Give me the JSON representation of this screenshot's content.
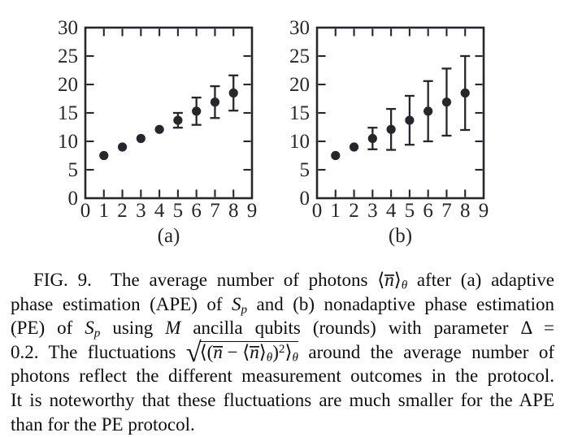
{
  "chart_data": [
    {
      "type": "scatter",
      "panel_label": "(a)",
      "x": [
        1,
        2,
        3,
        4,
        5,
        6,
        7,
        8
      ],
      "y": [
        7.5,
        9.0,
        10.5,
        12.1,
        13.7,
        15.3,
        16.9,
        18.5
      ],
      "yerr": [
        0,
        0,
        0,
        0,
        1.3,
        2.4,
        2.8,
        3.1
      ],
      "xlim": [
        0,
        9
      ],
      "ylim": [
        0,
        30
      ],
      "x_ticks": [
        0,
        1,
        2,
        3,
        4,
        5,
        6,
        7,
        8,
        9
      ],
      "y_ticks": [
        0,
        5,
        10,
        15,
        20,
        25,
        30
      ]
    },
    {
      "type": "scatter",
      "panel_label": "(b)",
      "x": [
        1,
        2,
        3,
        4,
        5,
        6,
        7,
        8
      ],
      "y": [
        7.5,
        9.0,
        10.5,
        12.1,
        13.7,
        15.3,
        16.9,
        18.5
      ],
      "yerr": [
        0,
        0,
        1.9,
        3.6,
        4.3,
        5.3,
        5.9,
        6.5
      ],
      "xlim": [
        0,
        9
      ],
      "ylim": [
        0,
        30
      ],
      "x_ticks": [
        0,
        1,
        2,
        3,
        4,
        5,
        6,
        7,
        8,
        9
      ],
      "y_ticks": [
        0,
        5,
        10,
        15,
        20,
        25,
        30
      ]
    }
  ],
  "figure": {
    "marker_color": "#26262c",
    "axis_color": "#26262c"
  },
  "caption": {
    "lines": [
      [
        {
          "t": "FIG. 9.  The average number of photons ",
          "s": "r"
        },
        {
          "t": "⟨",
          "s": "r"
        },
        {
          "t": "n",
          "s": "i nbar"
        },
        {
          "t": "⟩",
          "s": "r"
        },
        {
          "t": "θ",
          "s": "sub"
        },
        {
          "t": " after (a) adaptive",
          "s": "r"
        }
      ],
      [
        {
          "t": "phase estimation (APE) of ",
          "s": "r"
        },
        {
          "t": "S",
          "s": "i"
        },
        {
          "t": "p",
          "s": "sub"
        },
        {
          "t": " and (b) nonadaptive phase estimation",
          "s": "r"
        }
      ],
      [
        {
          "t": "(PE) of ",
          "s": "r"
        },
        {
          "t": "S",
          "s": "i"
        },
        {
          "t": "p",
          "s": "sub"
        },
        {
          "t": " using ",
          "s": "r"
        },
        {
          "t": "M",
          "s": "i"
        },
        {
          "t": " ancilla qubits (rounds) with parameter Δ =",
          "s": "r"
        }
      ],
      [
        {
          "t": "0.2. The fluctuations ",
          "s": "r"
        },
        {
          "t": "√",
          "s": "rad"
        },
        {
          "s": "ov",
          "c": [
            {
              "t": "⟨(",
              "s": "r"
            },
            {
              "t": "n",
              "s": "i nbar"
            },
            {
              "t": " − ⟨",
              "s": "r"
            },
            {
              "t": "n",
              "s": "i nbar"
            },
            {
              "t": "⟩",
              "s": "r"
            },
            {
              "t": "θ",
              "s": "sub"
            },
            {
              "t": ")",
              "s": "r"
            },
            {
              "t": "2",
              "s": "sup"
            },
            {
              "t": "⟩",
              "s": "r"
            },
            {
              "t": "θ",
              "s": "sub"
            }
          ]
        },
        {
          "t": " around the average number of",
          "s": "r"
        }
      ],
      [
        {
          "t": "photons reflect the different measurement outcomes in the protocol.",
          "s": "r"
        }
      ],
      [
        {
          "t": "It is noteworthy that these fluctuations are much smaller for the APE",
          "s": "r"
        }
      ],
      [
        {
          "t": "than for the PE protocol.",
          "s": "r"
        }
      ]
    ]
  }
}
